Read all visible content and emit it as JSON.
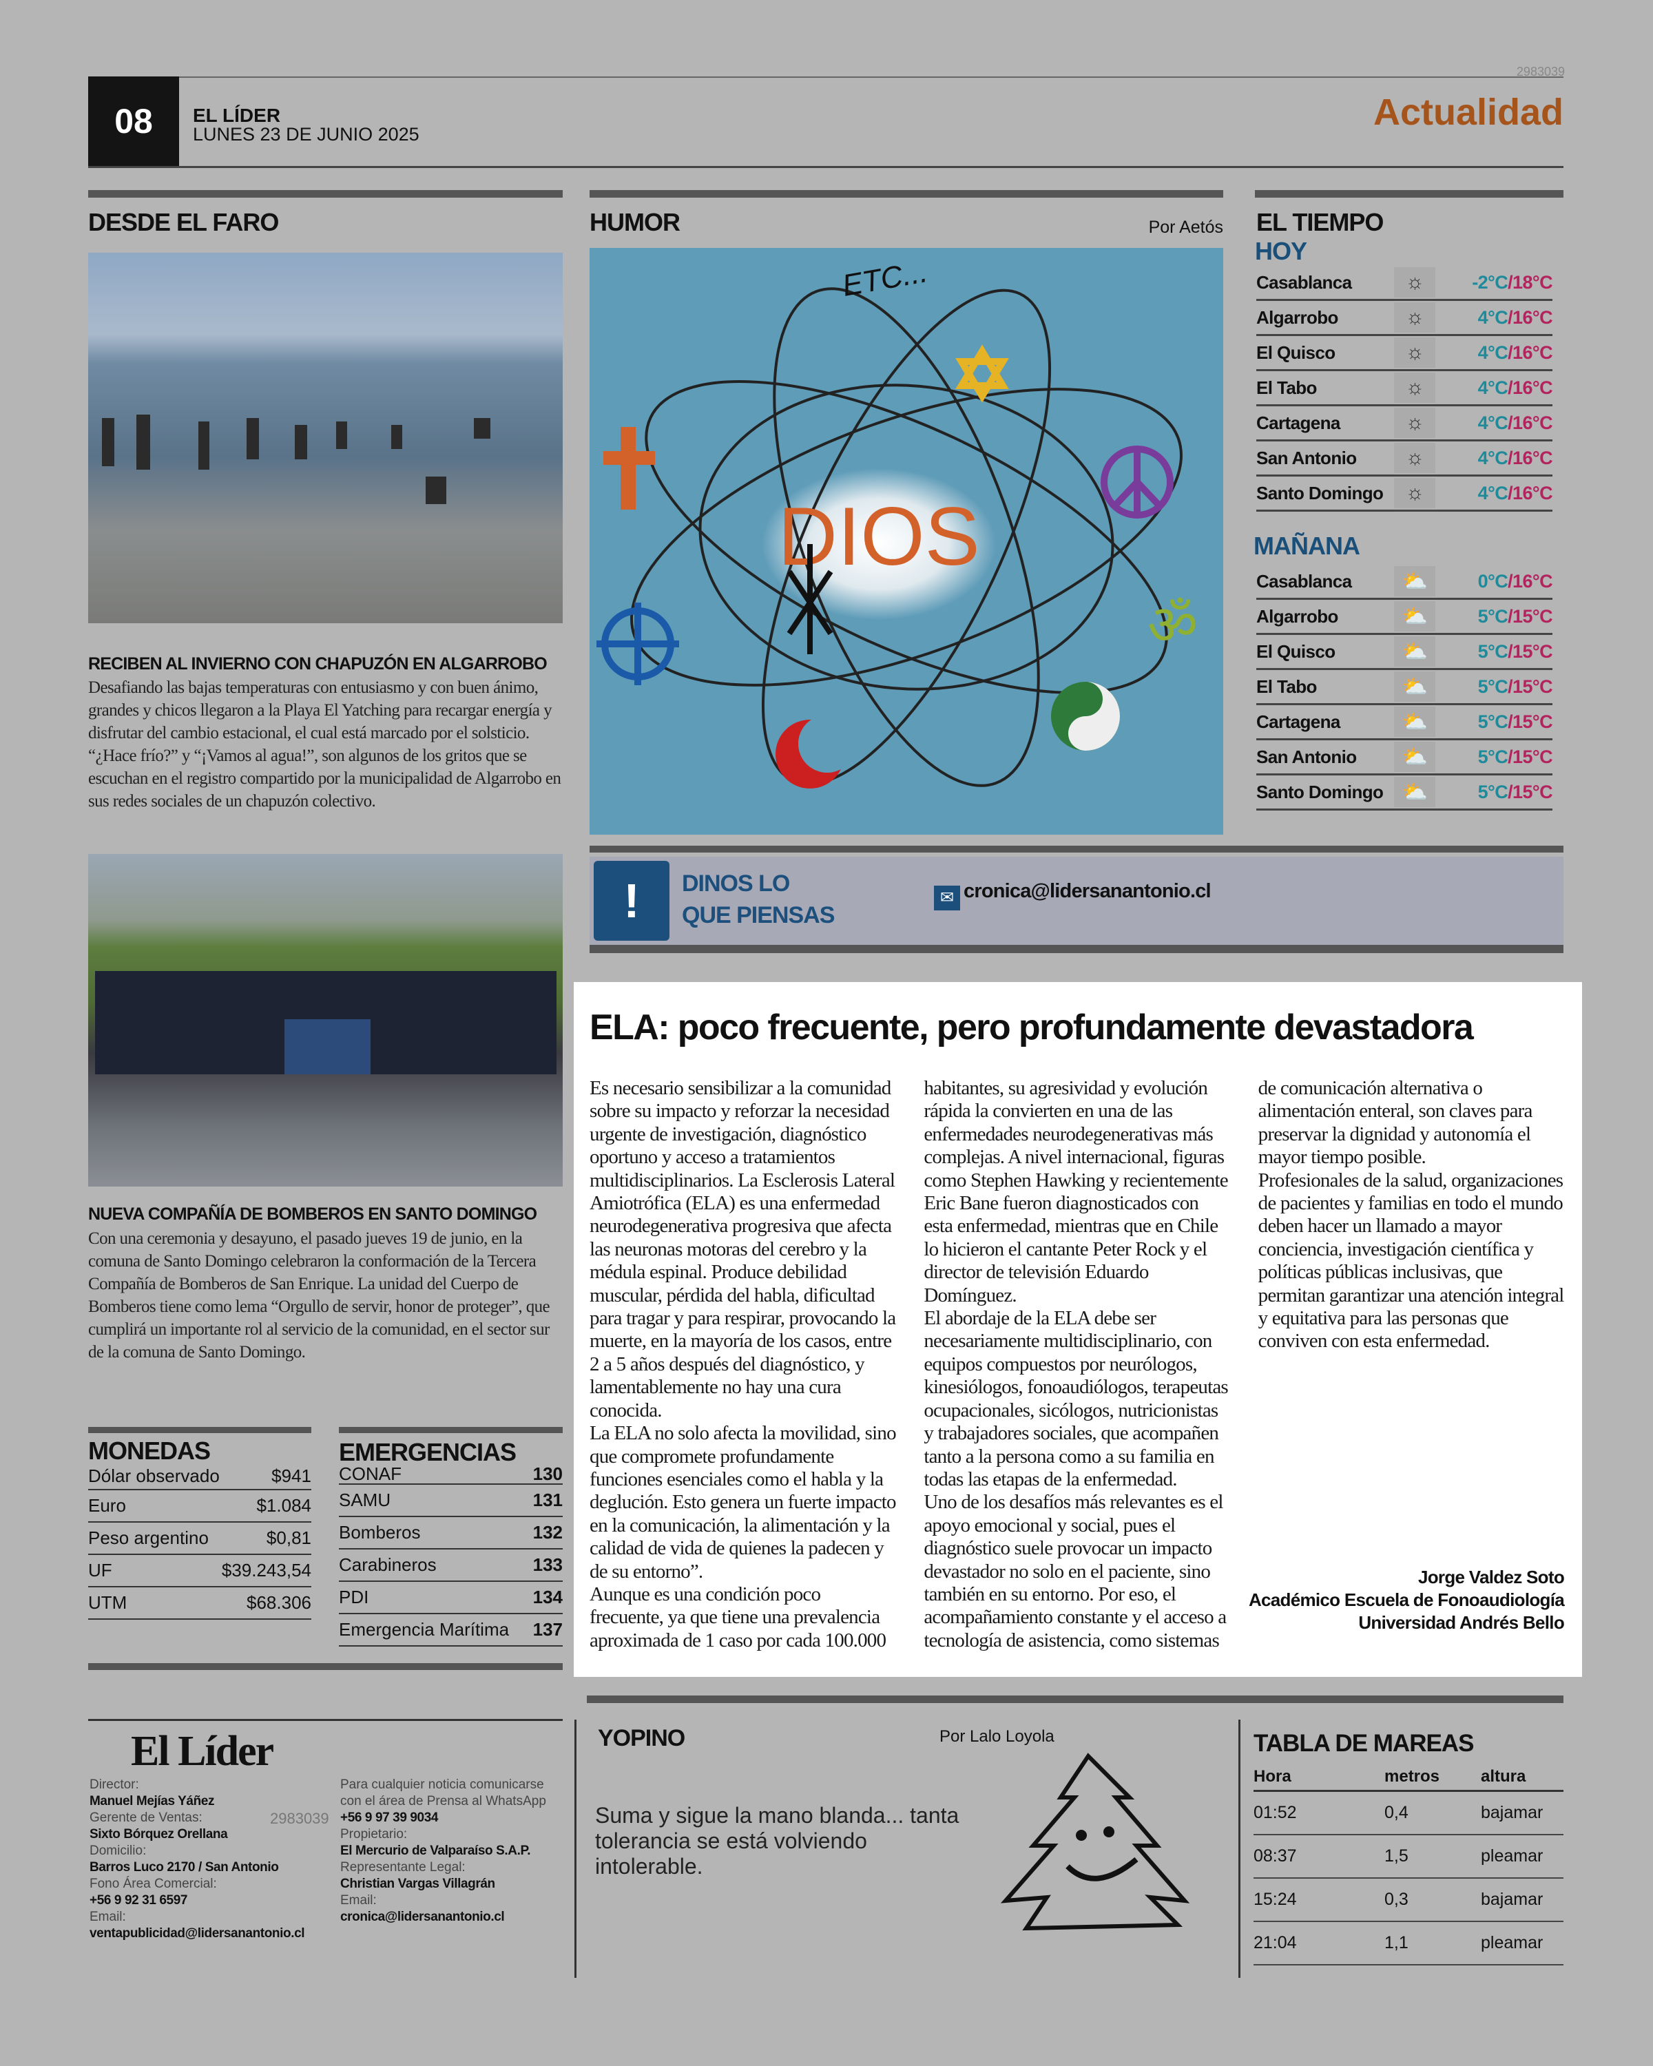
{
  "header": {
    "page_number": "08",
    "paper": "EL LÍDER",
    "date": "LUNES 23 DE JUNIO 2025",
    "section": "Actualidad",
    "watermark": "2983039"
  },
  "faro": {
    "title": "DESDE EL FARO",
    "story1": {
      "title": "RECIBEN AL INVIERNO CON CHAPUZÓN EN ALGARROBO",
      "text": "Desafiando las bajas temperaturas con entusiasmo y con buen ánimo, grandes y chicos llegaron  a la Playa El Yatching para recargar energía y disfrutar del cambio estacional, el cual está marcado por el solsticio. “¿Hace frío?” y “¡Vamos al agua!”, son algunos de los gritos que se escuchan en el registro compartido por la municipalidad de Algarrobo en sus redes sociales de un chapuzón colectivo."
    },
    "story2": {
      "title": "NUEVA COMPAÑÍA DE BOMBEROS EN SANTO DOMINGO",
      "text": "Con una ceremonia y desayuno, el pasado  jueves 19 de junio, en la comuna de Santo Domingo celebraron la conformación de la Tercera Compañía de Bomberos de San Enrique. La unidad del Cuerpo de Bomberos tiene como lema “Orgullo de servir, honor de proteger”, que cumplirá un importante rol al servicio de la comunidad, en el sector sur de la comuna de Santo Domingo."
    }
  },
  "monedas": {
    "title": "MONEDAS",
    "rows": [
      [
        "Dólar observado",
        "$941"
      ],
      [
        "Euro",
        "$1.084"
      ],
      [
        "Peso argentino",
        "$0,81"
      ],
      [
        "UF",
        "$39.243,54"
      ],
      [
        "UTM",
        "$68.306"
      ]
    ]
  },
  "emergencias": {
    "title": "EMERGENCIAS",
    "rows": [
      [
        "CONAF",
        "130"
      ],
      [
        "SAMU",
        "131"
      ],
      [
        "Bomberos",
        "132"
      ],
      [
        "Carabineros",
        "133"
      ],
      [
        "PDI",
        "134"
      ],
      [
        "Emergencia Marítima",
        "137"
      ]
    ]
  },
  "humor": {
    "title": "HUMOR",
    "author": "Por Aetós",
    "cartoon_text": {
      "center": "DIOS",
      "top": "ETC..."
    }
  },
  "tiempo": {
    "title": "EL TIEMPO",
    "hoy_label": "HOY",
    "manana_label": "MAÑANA",
    "hoy": [
      [
        "Casablanca",
        "-2°C",
        "/18°C"
      ],
      [
        "Algarrobo",
        "4°C",
        "/16°C"
      ],
      [
        "El Quisco",
        "4°C",
        "/16°C"
      ],
      [
        "El Tabo",
        "4°C",
        "/16°C"
      ],
      [
        "Cartagena",
        "4°C",
        "/16°C"
      ],
      [
        "San Antonio",
        "4°C",
        "/16°C"
      ],
      [
        "Santo Domingo",
        "4°C",
        "/16°C"
      ]
    ],
    "manana": [
      [
        "Casablanca",
        "0°C",
        "/16°C"
      ],
      [
        "Algarrobo",
        "5°C",
        "/15°C"
      ],
      [
        "El Quisco",
        "5°C",
        "/15°C"
      ],
      [
        "El Tabo",
        "5°C",
        "/15°C"
      ],
      [
        "Cartagena",
        "5°C",
        "/15°C"
      ],
      [
        "San Antonio",
        "5°C",
        "/15°C"
      ],
      [
        "Santo Domingo",
        "5°C",
        "/15°C"
      ]
    ],
    "colors": {
      "min": "#1f8a9a",
      "max": "#b3245e",
      "label": "#1a4f7a"
    },
    "hoy_icon": "sun-icon",
    "manana_icon": "partly-cloudy-icon"
  },
  "dinos": {
    "line1": "DINOS LO",
    "line2": "QUE PIENSAS",
    "email": "cronica@lidersanantonio.cl"
  },
  "article": {
    "title": "ELA: poco frecuente, pero profundamente devastadora",
    "paragraphs": [
      "Es necesario sensibilizar a la comunidad sobre su impacto y reforzar la necesidad urgente de investigación, diagnóstico oportuno y acceso a tratamientos multidisciplinarios. La Esclerosis Lateral Amiotrófica (ELA) es una enfermedad neurodegenerativa progresiva que afecta las neuronas motoras del cerebro y la médula espinal. Produce debilidad muscular, pérdida del habla, dificultad para tragar y para respirar, provocando la muerte, en la mayoría de los casos, entre 2 a 5 años después del diagnóstico, y lamentablemente no hay una cura conocida.",
      "La ELA no solo afecta la movilidad, sino que compromete profundamente funciones esenciales como el habla y la deglución. Esto genera un fuerte impacto en la comunicación, la alimentación y la calidad de vida de quienes la padecen y de su entorno”.",
      "Aunque es una condición poco frecuente, ya que tiene una prevalencia aproximada de 1 caso por cada 100.000 habitantes, su agresividad y evolución rápida la convierten en una de las enfermedades neurodegenerativas más complejas. A nivel internacional, figuras como Stephen Hawking y recientemente Eric Bane fueron diagnosticados con esta enfermedad, mientras que en Chile lo hicieron el cantante Peter Rock y el director de televisión Eduardo Domínguez.",
      "El abordaje de la ELA debe ser necesariamente multidisciplinario, con equipos compuestos por neurólogos, kinesiólogos, fonoaudiólogos, terapeutas ocupacionales, sicólogos, nutricionistas y trabajadores sociales, que acompañen tanto a la persona como a su familia en todas las etapas de la enfermedad.",
      "Uno de los desafíos más relevantes es el apoyo emocional y social, pues el diagnóstico suele provocar un impacto devastador no solo en el paciente, sino también en su entorno. Por eso, el acompañamiento constante y el acceso a tecnología de asistencia, como sistemas de comunicación alternativa o alimentación enteral, son claves para preservar la dignidad y autonomía el mayor tiempo posible.",
      "Profesionales de la salud, organizaciones de pacientes y familias en todo el mundo deben hacer un llamado a mayor conciencia, investigación científica y políticas públicas inclusivas, que permitan garantizar una atención integral y equitativa para las personas que conviven con esta enfermedad."
    ],
    "author": "Jorge Valdez Soto",
    "role": "Académico Escuela de Fonoaudiología",
    "university": "Universidad Andrés Bello"
  },
  "footer": {
    "logo": "El Líder",
    "left": [
      [
        "Director:",
        "Manuel Mejías Yáñez"
      ],
      [
        "Gerente de Ventas:",
        "Sixto Bórquez Orellana"
      ],
      [
        "Domicilio:",
        "Barros Luco 2170 / San Antonio"
      ],
      [
        "Fono Área Comercial:",
        "+56 9 92 31 6597"
      ],
      [
        "Email:",
        "ventapublicidad@lidersanantonio.cl"
      ]
    ],
    "whatsapp_note": "Para cualquier noticia comunicarse con el área de Prensa al WhatsApp",
    "whatsapp": "+56 9 97 39 9034",
    "right": [
      [
        "Propietario:",
        "El Mercurio de Valparaíso S.A.P."
      ],
      [
        "Representante Legal:",
        "Christian Vargas Villagrán"
      ],
      [
        "Email:",
        "cronica@lidersanantonio.cl"
      ]
    ]
  },
  "yopino": {
    "title": "YOPINO",
    "author": "Por Lalo Loyola",
    "text": "Suma y sigue la mano blanda... tanta tolerancia se está volviendo intolerable."
  },
  "mareas": {
    "title": "TABLA DE MAREAS",
    "headers": [
      "Hora",
      "metros",
      "altura"
    ],
    "rows": [
      [
        "01:52",
        "0,4",
        "bajamar"
      ],
      [
        "08:37",
        "1,5",
        "pleamar"
      ],
      [
        "15:24",
        "0,3",
        "bajamar"
      ],
      [
        "21:04",
        "1,1",
        "pleamar"
      ]
    ]
  }
}
